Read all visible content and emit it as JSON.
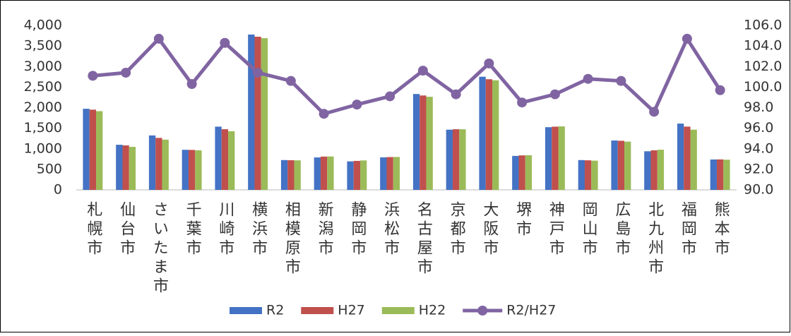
{
  "chart_data": {
    "type": "bar_line",
    "categories": [
      "札幌市",
      "仙台市",
      "さいたま市",
      "千葉市",
      "川崎市",
      "横浜市",
      "相模原市",
      "新潟市",
      "静岡市",
      "浜松市",
      "名古屋市",
      "京都市",
      "大阪市",
      "堺市",
      "神戸市",
      "岡山市",
      "広島市",
      "北九州市",
      "福岡市",
      "熊本市"
    ],
    "series": [
      {
        "name": "R2",
        "color": "#4472c4",
        "values": [
          1973,
          1097,
          1324,
          975,
          1538,
          3778,
          725,
          789,
          693,
          791,
          2332,
          1464,
          2752,
          826,
          1525,
          725,
          1201,
          939,
          1612,
          739
        ]
      },
      {
        "name": "H27",
        "color": "#c0504d",
        "values": [
          1952,
          1082,
          1264,
          972,
          1475,
          3725,
          721,
          810,
          705,
          798,
          2296,
          1475,
          2691,
          839,
          1537,
          719,
          1194,
          962,
          1539,
          741
        ]
      },
      {
        "name": "H22",
        "color": "#9bbb59",
        "values": [
          1914,
          1046,
          1222,
          962,
          1426,
          3689,
          718,
          812,
          716,
          801,
          2264,
          1474,
          2665,
          842,
          1544,
          710,
          1174,
          977,
          1464,
          734
        ]
      },
      {
        "name": "R2/H27",
        "color": "#8064a2",
        "axis": "y2",
        "values": [
          101.1,
          101.4,
          104.7,
          100.3,
          104.3,
          101.4,
          100.6,
          97.4,
          98.3,
          99.1,
          101.6,
          99.3,
          102.3,
          98.5,
          99.3,
          100.8,
          100.6,
          97.6,
          104.7,
          99.7
        ]
      }
    ],
    "ylim": [
      0,
      4000
    ],
    "yticks": [
      0,
      500,
      {
        "value": 1000,
        "label": "1,000"
      },
      {
        "value": 1500,
        "label": "1,500"
      },
      {
        "value": 2000,
        "label": "2,000"
      },
      {
        "value": 2500,
        "label": "2,500"
      },
      {
        "value": 3000,
        "label": "3,000"
      },
      {
        "value": 3500,
        "label": "3,500"
      },
      {
        "value": 4000,
        "label": "4,000"
      }
    ],
    "y2lim": [
      90,
      106
    ],
    "y2ticks": [
      {
        "value": 90,
        "label": "90.0"
      },
      {
        "value": 92,
        "label": "92.0"
      },
      {
        "value": 94,
        "label": "94.0"
      },
      {
        "value": 96,
        "label": "96.0"
      },
      {
        "value": 98,
        "label": "98.0"
      },
      {
        "value": 100,
        "label": "100.0"
      },
      {
        "value": 102,
        "label": "102.0"
      },
      {
        "value": 104,
        "label": "104.0"
      },
      {
        "value": 106,
        "label": "106.0"
      }
    ],
    "legend": "bottom"
  }
}
